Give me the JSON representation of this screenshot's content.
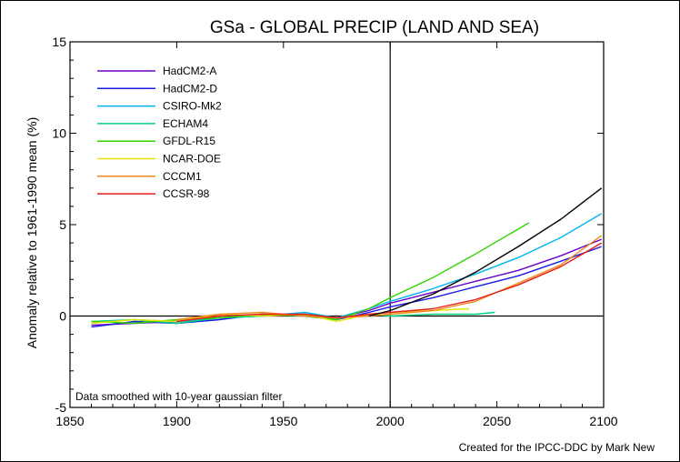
{
  "chart_data": {
    "type": "line",
    "title": "GSa - GLOBAL PRECIP (LAND AND SEA)",
    "ylabel": "Anomaly relative to 1961-1990 mean (%)",
    "xlabel": "",
    "xlim": [
      1850,
      2100
    ],
    "ylim": [
      -5,
      15
    ],
    "x_ticks": [
      "1850",
      "1900",
      "1950",
      "2000",
      "2050",
      "2100"
    ],
    "y_ticks": [
      "-5",
      "0",
      "5",
      "10",
      "15"
    ],
    "reference_lines": {
      "x": 2000,
      "y": 0
    },
    "legend_position": "top-left",
    "note": "Data smoothed with 10-year gaussian filter",
    "credit": "Created for the IPCC-DDC by Mark New",
    "series": [
      {
        "name": "HadCM2-A",
        "color": "#6a00c8",
        "x": [
          1860,
          1880,
          1900,
          1920,
          1940,
          1960,
          1975,
          1990,
          2000,
          2020,
          2040,
          2060,
          2080,
          2099
        ],
        "y": [
          -0.5,
          -0.4,
          -0.3,
          -0.1,
          0.0,
          0.1,
          -0.1,
          0.3,
          0.7,
          1.3,
          1.9,
          2.5,
          3.3,
          4.2
        ]
      },
      {
        "name": "HadCM2-D",
        "color": "#1a1ae6",
        "x": [
          1860,
          1880,
          1900,
          1920,
          1940,
          1960,
          1975,
          1990,
          2000,
          2020,
          2040,
          2060,
          2080,
          2099
        ],
        "y": [
          -0.6,
          -0.3,
          -0.4,
          -0.2,
          0.1,
          0.0,
          -0.2,
          0.2,
          0.5,
          1.0,
          1.6,
          2.2,
          3.0,
          3.8
        ]
      },
      {
        "name": "CSIRO-Mk2",
        "color": "#00b4f0",
        "x": [
          1880,
          1900,
          1920,
          1940,
          1960,
          1975,
          1990,
          2000,
          2020,
          2040,
          2060,
          2080,
          2099
        ],
        "y": [
          -0.2,
          -0.3,
          -0.1,
          0.0,
          0.2,
          -0.1,
          0.4,
          0.8,
          1.5,
          2.3,
          3.2,
          4.3,
          5.6
        ]
      },
      {
        "name": "ECHAM4",
        "color": "#00d280",
        "x": [
          1860,
          1880,
          1900,
          1920,
          1940,
          1960,
          1975,
          1990,
          2000,
          2020,
          2040,
          2049
        ],
        "y": [
          -0.3,
          -0.2,
          -0.4,
          -0.1,
          0.0,
          0.1,
          -0.1,
          0.1,
          0.0,
          0.1,
          0.1,
          0.2
        ]
      },
      {
        "name": "GFDL-R15",
        "color": "#32d200",
        "x": [
          1860,
          1880,
          1900,
          1920,
          1940,
          1960,
          1975,
          1990,
          2000,
          2020,
          2040,
          2065
        ],
        "y": [
          -0.3,
          -0.4,
          -0.2,
          -0.1,
          0.1,
          0.0,
          -0.2,
          0.4,
          1.0,
          2.1,
          3.4,
          5.1
        ]
      },
      {
        "name": "NCAR-DOE",
        "color": "#e6e600",
        "x": [
          1860,
          1880,
          1900,
          1920,
          1940,
          1960,
          1975,
          1990,
          2000,
          2020,
          2037
        ],
        "y": [
          -0.4,
          -0.2,
          -0.3,
          0.1,
          0.0,
          0.1,
          -0.3,
          0.1,
          0.2,
          0.3,
          0.4
        ]
      },
      {
        "name": "CCCM1",
        "color": "#f08c1e",
        "x": [
          1900,
          1920,
          1940,
          1960,
          1975,
          1990,
          2000,
          2020,
          2040,
          2060,
          2080,
          2099
        ],
        "y": [
          -0.2,
          0.1,
          0.2,
          0.0,
          -0.1,
          0.0,
          0.1,
          0.3,
          0.8,
          1.8,
          2.8,
          4.4
        ]
      },
      {
        "name": "CCSR-98",
        "color": "#e61e1e",
        "x": [
          1900,
          1920,
          1940,
          1960,
          1975,
          1990,
          2000,
          2020,
          2040,
          2060,
          2080,
          2099
        ],
        "y": [
          -0.3,
          0.0,
          0.1,
          0.1,
          -0.1,
          0.1,
          0.2,
          0.4,
          0.9,
          1.7,
          2.7,
          4.0
        ]
      },
      {
        "name": "",
        "color": "#000000",
        "x": [
          1990,
          2000,
          2020,
          2040,
          2060,
          2080,
          2099
        ],
        "y": [
          0.0,
          0.3,
          1.2,
          2.4,
          3.8,
          5.3,
          7.0
        ]
      }
    ]
  }
}
